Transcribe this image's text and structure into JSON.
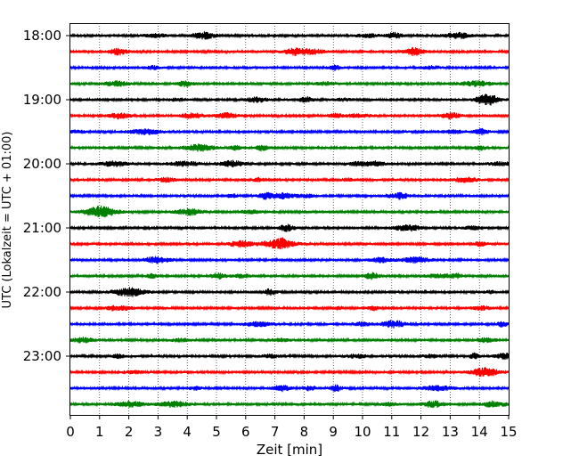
{
  "chart_data": {
    "type": "line",
    "title": "",
    "xlabel": "Zeit  [min]",
    "ylabel": "UTC (Lokalzeit = UTC + 01:00)",
    "xlim": [
      0,
      15
    ],
    "x_ticks": [
      "0",
      "1",
      "2",
      "3",
      "4",
      "5",
      "6",
      "7",
      "8",
      "9",
      "10",
      "11",
      "12",
      "13",
      "14",
      "15"
    ],
    "y_tick_labels": [
      "18:00",
      "19:00",
      "20:00",
      "21:00",
      "22:00",
      "23:00"
    ],
    "grid": "vertical dotted",
    "legend": "none",
    "series": [
      {
        "start": "18:00",
        "color": "#000000"
      },
      {
        "start": "18:15",
        "color": "#ff0000"
      },
      {
        "start": "18:30",
        "color": "#0000ff"
      },
      {
        "start": "18:45",
        "color": "#008000"
      },
      {
        "start": "19:00",
        "color": "#000000"
      },
      {
        "start": "19:15",
        "color": "#ff0000"
      },
      {
        "start": "19:30",
        "color": "#0000ff"
      },
      {
        "start": "19:45",
        "color": "#008000"
      },
      {
        "start": "20:00",
        "color": "#000000"
      },
      {
        "start": "20:15",
        "color": "#ff0000"
      },
      {
        "start": "20:30",
        "color": "#0000ff"
      },
      {
        "start": "20:45",
        "color": "#008000"
      },
      {
        "start": "21:00",
        "color": "#000000"
      },
      {
        "start": "21:15",
        "color": "#ff0000"
      },
      {
        "start": "21:30",
        "color": "#0000ff"
      },
      {
        "start": "21:45",
        "color": "#008000"
      },
      {
        "start": "22:00",
        "color": "#000000"
      },
      {
        "start": "22:15",
        "color": "#ff0000"
      },
      {
        "start": "22:30",
        "color": "#0000ff"
      },
      {
        "start": "22:45",
        "color": "#008000"
      },
      {
        "start": "23:00",
        "color": "#000000"
      },
      {
        "start": "23:15",
        "color": "#ff0000"
      },
      {
        "start": "23:30",
        "color": "#0000ff"
      },
      {
        "start": "23:45",
        "color": "#008000"
      }
    ]
  }
}
